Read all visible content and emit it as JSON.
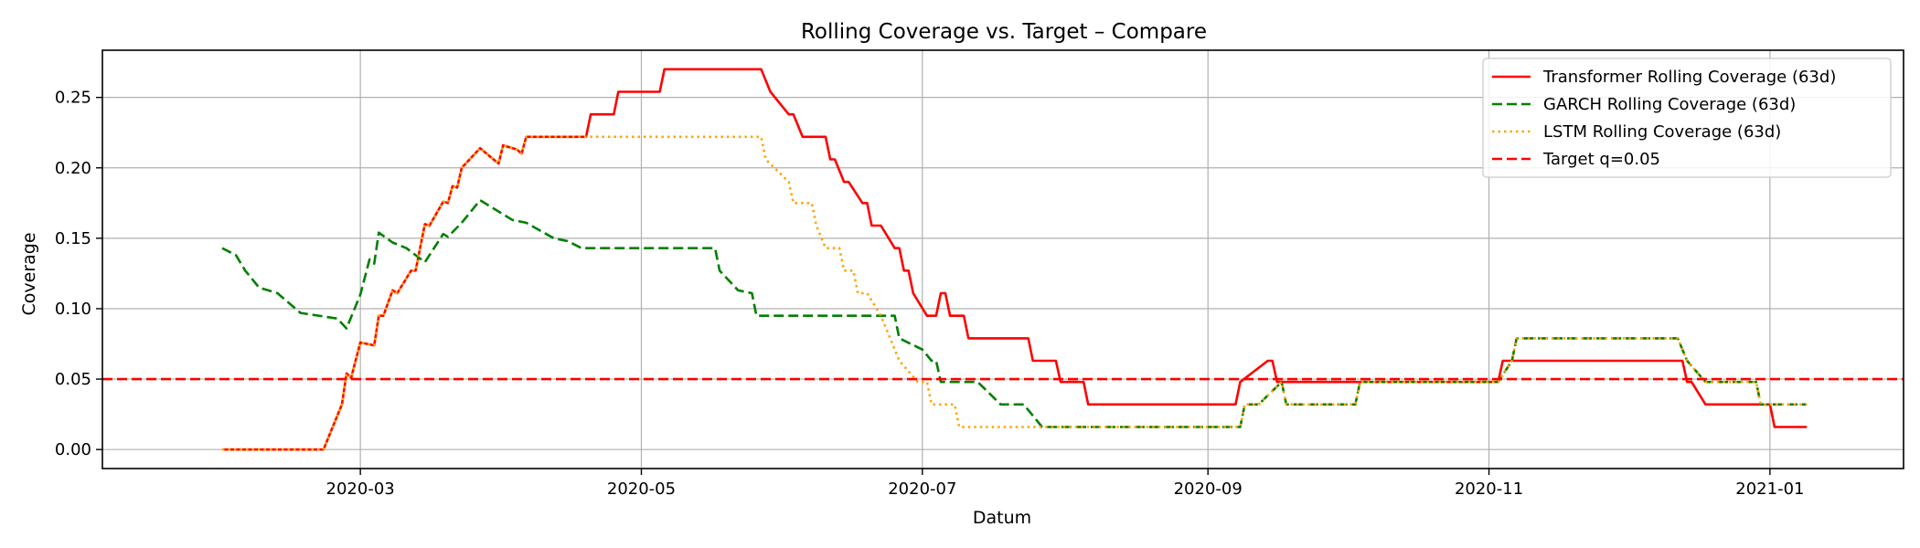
{
  "chart_data": {
    "type": "line",
    "title": "Rolling Coverage vs. Target – Compare",
    "xlabel": "Datum",
    "ylabel": "Coverage",
    "x_axis": {
      "kind": "date",
      "range": [
        "2020-01-05",
        "2021-01-30"
      ],
      "ticks": [
        {
          "value": "2020-03-01",
          "label": "2020-03"
        },
        {
          "value": "2020-05-01",
          "label": "2020-05"
        },
        {
          "value": "2020-07-01",
          "label": "2020-07"
        },
        {
          "value": "2020-09-01",
          "label": "2020-09"
        },
        {
          "value": "2020-11-01",
          "label": "2020-11"
        },
        {
          "value": "2021-01-01",
          "label": "2021-01"
        }
      ]
    },
    "y_axis": {
      "range": [
        -0.0135,
        0.2835
      ],
      "ticks": [
        {
          "value": 0.0,
          "label": "0.00"
        },
        {
          "value": 0.05,
          "label": "0.05"
        },
        {
          "value": 0.1,
          "label": "0.10"
        },
        {
          "value": 0.15,
          "label": "0.15"
        },
        {
          "value": 0.2,
          "label": "0.20"
        },
        {
          "value": 0.25,
          "label": "0.25"
        }
      ]
    },
    "grid": true,
    "legend_position": "top-right",
    "series": [
      {
        "name": "Transformer Rolling Coverage (63d)",
        "color": "#ff0000",
        "style": "solid",
        "points": [
          [
            "2020-01-31",
            0.0
          ],
          [
            "2020-02-22",
            0.0
          ],
          [
            "2020-02-26",
            0.032
          ],
          [
            "2020-02-27",
            0.054
          ],
          [
            "2020-02-28",
            0.051
          ],
          [
            "2020-03-01",
            0.076
          ],
          [
            "2020-03-04",
            0.074
          ],
          [
            "2020-03-05",
            0.095
          ],
          [
            "2020-03-06",
            0.095
          ],
          [
            "2020-03-08",
            0.113
          ],
          [
            "2020-03-09",
            0.111
          ],
          [
            "2020-03-12",
            0.127
          ],
          [
            "2020-03-13",
            0.127
          ],
          [
            "2020-03-15",
            0.16
          ],
          [
            "2020-03-16",
            0.159
          ],
          [
            "2020-03-19",
            0.176
          ],
          [
            "2020-03-20",
            0.175
          ],
          [
            "2020-03-21",
            0.187
          ],
          [
            "2020-03-22",
            0.186
          ],
          [
            "2020-03-23",
            0.2
          ],
          [
            "2020-03-27",
            0.214
          ],
          [
            "2020-03-31",
            0.203
          ],
          [
            "2020-04-01",
            0.216
          ],
          [
            "2020-04-04",
            0.213
          ],
          [
            "2020-04-05",
            0.21
          ],
          [
            "2020-04-06",
            0.222
          ],
          [
            "2020-04-19",
            0.222
          ],
          [
            "2020-04-20",
            0.238
          ],
          [
            "2020-04-25",
            0.238
          ],
          [
            "2020-04-26",
            0.254
          ],
          [
            "2020-05-05",
            0.254
          ],
          [
            "2020-05-06",
            0.27
          ],
          [
            "2020-05-27",
            0.27
          ],
          [
            "2020-05-29",
            0.254
          ],
          [
            "2020-06-02",
            0.238
          ],
          [
            "2020-06-03",
            0.238
          ],
          [
            "2020-06-05",
            0.222
          ],
          [
            "2020-06-10",
            0.222
          ],
          [
            "2020-06-11",
            0.206
          ],
          [
            "2020-06-12",
            0.206
          ],
          [
            "2020-06-14",
            0.19
          ],
          [
            "2020-06-15",
            0.19
          ],
          [
            "2020-06-18",
            0.175
          ],
          [
            "2020-06-19",
            0.175
          ],
          [
            "2020-06-20",
            0.159
          ],
          [
            "2020-06-22",
            0.159
          ],
          [
            "2020-06-25",
            0.143
          ],
          [
            "2020-06-26",
            0.143
          ],
          [
            "2020-06-27",
            0.127
          ],
          [
            "2020-06-28",
            0.127
          ],
          [
            "2020-06-29",
            0.111
          ],
          [
            "2020-07-02",
            0.095
          ],
          [
            "2020-07-04",
            0.095
          ],
          [
            "2020-07-05",
            0.111
          ],
          [
            "2020-07-06",
            0.111
          ],
          [
            "2020-07-07",
            0.095
          ],
          [
            "2020-07-10",
            0.095
          ],
          [
            "2020-07-11",
            0.079
          ],
          [
            "2020-07-24",
            0.079
          ],
          [
            "2020-07-25",
            0.063
          ],
          [
            "2020-07-30",
            0.063
          ],
          [
            "2020-07-31",
            0.048
          ],
          [
            "2020-08-05",
            0.048
          ],
          [
            "2020-08-06",
            0.032
          ],
          [
            "2020-09-07",
            0.032
          ],
          [
            "2020-09-08",
            0.048
          ],
          [
            "2020-09-14",
            0.063
          ],
          [
            "2020-09-15",
            0.063
          ],
          [
            "2020-09-16",
            0.048
          ],
          [
            "2020-11-03",
            0.048
          ],
          [
            "2020-11-04",
            0.063
          ],
          [
            "2020-12-13",
            0.063
          ],
          [
            "2020-12-14",
            0.048
          ],
          [
            "2020-12-15",
            0.048
          ],
          [
            "2020-12-18",
            0.032
          ],
          [
            "2021-01-01",
            0.032
          ],
          [
            "2021-01-02",
            0.016
          ],
          [
            "2021-01-09",
            0.016
          ]
        ]
      },
      {
        "name": "GARCH Rolling Coverage (63d)",
        "color": "#008000",
        "style": "dashed",
        "points": [
          [
            "2020-01-31",
            0.143
          ],
          [
            "2020-02-03",
            0.138
          ],
          [
            "2020-02-05",
            0.127
          ],
          [
            "2020-02-08",
            0.115
          ],
          [
            "2020-02-12",
            0.111
          ],
          [
            "2020-02-17",
            0.097
          ],
          [
            "2020-02-25",
            0.093
          ],
          [
            "2020-02-27",
            0.086
          ],
          [
            "2020-03-01",
            0.11
          ],
          [
            "2020-03-03",
            0.135
          ],
          [
            "2020-03-04",
            0.132
          ],
          [
            "2020-03-05",
            0.154
          ],
          [
            "2020-03-08",
            0.147
          ],
          [
            "2020-03-11",
            0.143
          ],
          [
            "2020-03-15",
            0.133
          ],
          [
            "2020-03-19",
            0.153
          ],
          [
            "2020-03-20",
            0.151
          ],
          [
            "2020-03-23",
            0.161
          ],
          [
            "2020-03-27",
            0.177
          ],
          [
            "2020-04-03",
            0.163
          ],
          [
            "2020-04-06",
            0.161
          ],
          [
            "2020-04-12",
            0.15
          ],
          [
            "2020-04-15",
            0.148
          ],
          [
            "2020-04-18",
            0.143
          ],
          [
            "2020-05-17",
            0.143
          ],
          [
            "2020-05-18",
            0.127
          ],
          [
            "2020-05-22",
            0.113
          ],
          [
            "2020-05-25",
            0.111
          ],
          [
            "2020-05-26",
            0.095
          ],
          [
            "2020-06-25",
            0.095
          ],
          [
            "2020-06-26",
            0.079
          ],
          [
            "2020-07-01",
            0.071
          ],
          [
            "2020-07-03",
            0.063
          ],
          [
            "2020-07-04",
            0.063
          ],
          [
            "2020-07-05",
            0.048
          ],
          [
            "2020-07-13",
            0.048
          ],
          [
            "2020-07-18",
            0.032
          ],
          [
            "2020-07-23",
            0.032
          ],
          [
            "2020-07-27",
            0.016
          ],
          [
            "2020-09-08",
            0.016
          ],
          [
            "2020-09-09",
            0.032
          ],
          [
            "2020-09-12",
            0.032
          ],
          [
            "2020-09-17",
            0.048
          ],
          [
            "2020-09-18",
            0.032
          ],
          [
            "2020-10-03",
            0.032
          ],
          [
            "2020-10-04",
            0.048
          ],
          [
            "2020-10-05",
            0.048
          ],
          [
            "2020-11-03",
            0.048
          ],
          [
            "2020-11-06",
            0.063
          ],
          [
            "2020-11-07",
            0.079
          ],
          [
            "2020-12-12",
            0.079
          ],
          [
            "2020-12-14",
            0.063
          ],
          [
            "2020-12-18",
            0.048
          ],
          [
            "2020-12-29",
            0.048
          ],
          [
            "2020-12-30",
            0.032
          ],
          [
            "2021-01-09",
            0.032
          ]
        ]
      },
      {
        "name": "LSTM Rolling Coverage (63d)",
        "color": "#ffa500",
        "style": "dotted",
        "points": [
          [
            "2020-01-31",
            0.0
          ],
          [
            "2020-02-22",
            0.0
          ],
          [
            "2020-02-26",
            0.032
          ],
          [
            "2020-02-27",
            0.054
          ],
          [
            "2020-02-28",
            0.051
          ],
          [
            "2020-03-01",
            0.076
          ],
          [
            "2020-03-04",
            0.074
          ],
          [
            "2020-03-05",
            0.095
          ],
          [
            "2020-03-06",
            0.095
          ],
          [
            "2020-03-08",
            0.113
          ],
          [
            "2020-03-09",
            0.111
          ],
          [
            "2020-03-12",
            0.127
          ],
          [
            "2020-03-13",
            0.127
          ],
          [
            "2020-03-15",
            0.16
          ],
          [
            "2020-03-16",
            0.159
          ],
          [
            "2020-03-19",
            0.176
          ],
          [
            "2020-03-20",
            0.175
          ],
          [
            "2020-03-21",
            0.187
          ],
          [
            "2020-03-22",
            0.186
          ],
          [
            "2020-03-23",
            0.2
          ],
          [
            "2020-03-27",
            0.214
          ],
          [
            "2020-03-31",
            0.203
          ],
          [
            "2020-04-01",
            0.216
          ],
          [
            "2020-04-04",
            0.213
          ],
          [
            "2020-04-05",
            0.21
          ],
          [
            "2020-04-06",
            0.222
          ],
          [
            "2020-05-27",
            0.222
          ],
          [
            "2020-05-28",
            0.206
          ],
          [
            "2020-06-02",
            0.19
          ],
          [
            "2020-06-03",
            0.175
          ],
          [
            "2020-06-07",
            0.175
          ],
          [
            "2020-06-08",
            0.159
          ],
          [
            "2020-06-10",
            0.143
          ],
          [
            "2020-06-13",
            0.143
          ],
          [
            "2020-06-14",
            0.127
          ],
          [
            "2020-06-16",
            0.127
          ],
          [
            "2020-06-17",
            0.111
          ],
          [
            "2020-06-19",
            0.111
          ],
          [
            "2020-06-22",
            0.095
          ],
          [
            "2020-06-24",
            0.079
          ],
          [
            "2020-06-26",
            0.063
          ],
          [
            "2020-06-30",
            0.048
          ],
          [
            "2020-07-02",
            0.048
          ],
          [
            "2020-07-03",
            0.032
          ],
          [
            "2020-07-08",
            0.032
          ],
          [
            "2020-07-09",
            0.016
          ],
          [
            "2020-09-08",
            0.016
          ],
          [
            "2020-09-09",
            0.032
          ],
          [
            "2020-09-12",
            0.032
          ],
          [
            "2020-09-17",
            0.048
          ],
          [
            "2020-09-18",
            0.032
          ],
          [
            "2020-10-03",
            0.032
          ],
          [
            "2020-10-04",
            0.048
          ],
          [
            "2020-10-05",
            0.048
          ],
          [
            "2020-11-03",
            0.048
          ],
          [
            "2020-11-06",
            0.063
          ],
          [
            "2020-11-07",
            0.079
          ],
          [
            "2020-12-12",
            0.079
          ],
          [
            "2020-12-14",
            0.063
          ],
          [
            "2020-12-18",
            0.048
          ],
          [
            "2020-12-29",
            0.048
          ],
          [
            "2020-12-30",
            0.032
          ],
          [
            "2021-01-09",
            0.032
          ]
        ]
      },
      {
        "name": "Target q=0.05",
        "color": "#ff0000",
        "style": "dashed",
        "hline": 0.05
      }
    ]
  }
}
